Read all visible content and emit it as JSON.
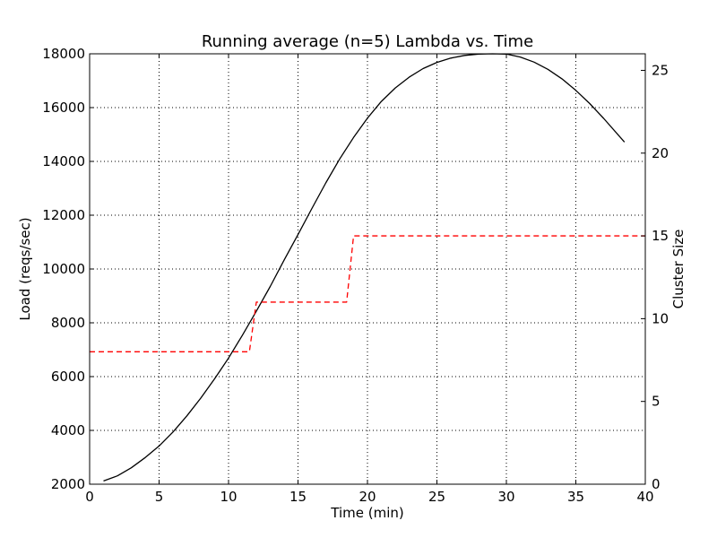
{
  "chart_data": {
    "type": "line",
    "title": "Running average (n=5) Lambda vs. Time",
    "xlabel": "Time (min)",
    "ylabel": "Load (reqs/sec)",
    "y2label": "Cluster Size",
    "xlim": [
      0,
      40
    ],
    "ylim": [
      2000,
      18000
    ],
    "y2lim": [
      0,
      26
    ],
    "xticks": [
      0,
      5,
      10,
      15,
      20,
      25,
      30,
      35,
      40
    ],
    "yticks": [
      2000,
      4000,
      6000,
      8000,
      10000,
      12000,
      14000,
      16000,
      18000
    ],
    "y2ticks": [
      0,
      5,
      10,
      15,
      20,
      25
    ],
    "grid": true,
    "series": [
      {
        "axis": "left",
        "style": "solid",
        "color": "#000000",
        "x": [
          1,
          2,
          3,
          4,
          5,
          6,
          7,
          8,
          9,
          10,
          11,
          12,
          13,
          14,
          15,
          16,
          17,
          18,
          19,
          20,
          21,
          22,
          23,
          24,
          25,
          26,
          27,
          28,
          29,
          30,
          31,
          32,
          33,
          34,
          35,
          36,
          37,
          38.5
        ],
        "values": [
          2120,
          2310,
          2610,
          2990,
          3420,
          3940,
          4540,
          5200,
          5920,
          6690,
          7540,
          8430,
          9350,
          10330,
          11280,
          12250,
          13200,
          14090,
          14890,
          15610,
          16230,
          16730,
          17130,
          17450,
          17680,
          17840,
          17940,
          17990,
          18000,
          17990,
          17880,
          17690,
          17420,
          17070,
          16640,
          16150,
          15600,
          14720
        ]
      },
      {
        "axis": "right",
        "style": "dashed",
        "color": "#ff0000",
        "x": [
          0,
          11.5,
          12,
          18.5,
          19,
          40
        ],
        "values": [
          8,
          8,
          11,
          11,
          15,
          15
        ]
      }
    ]
  }
}
